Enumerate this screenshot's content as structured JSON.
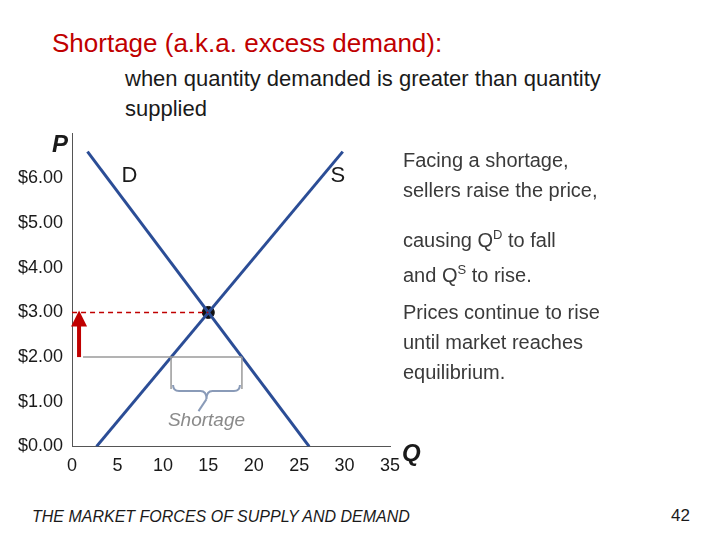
{
  "chart_data": {
    "type": "line",
    "title": "Shortage (a.k.a. excess demand):",
    "subtitle": "when quantity demanded is greater than quantity supplied",
    "xlabel": "Q",
    "ylabel": "P",
    "series": [
      {
        "name": "D",
        "color": "#2b4d96",
        "x": [
          1.7,
          26.1
        ],
        "values": [
          6.6,
          0
        ]
      },
      {
        "name": "S",
        "color": "#2b4d96",
        "x": [
          2.7,
          29.8
        ],
        "values": [
          0,
          6.6
        ]
      }
    ],
    "equilibrium": {
      "x": 15,
      "y": 3
    },
    "shortage": {
      "label": "Shortage",
      "price": 2,
      "quantity_supplied": 10.9,
      "quantity_demanded": 18.7
    },
    "xlim": [
      0,
      35
    ],
    "xticks": [
      0,
      5,
      10,
      15,
      20,
      25,
      30,
      35
    ],
    "ylim": [
      0,
      7
    ],
    "yticks": [
      {
        "value": 0,
        "label": "$0.00"
      },
      {
        "value": 1,
        "label": "$1.00"
      },
      {
        "value": 2,
        "label": "$2.00"
      },
      {
        "value": 3,
        "label": "$3.00"
      },
      {
        "value": 4,
        "label": "$4.00"
      },
      {
        "value": 5,
        "label": "$5.00"
      },
      {
        "value": 6,
        "label": "$6.00"
      }
    ],
    "grid": false,
    "legend": false,
    "annotations": [
      [
        [
          {
            "text": "Facing a shortage,"
          }
        ],
        [
          {
            "text": "sellers raise the price,"
          }
        ]
      ],
      [
        [
          {
            "text": "causing Q"
          },
          {
            "text": "D",
            "sup": true
          },
          {
            "text": " to fall"
          }
        ],
        [
          {
            "text": "and Q"
          },
          {
            "text": "S",
            "sup": true
          },
          {
            "text": " to rise."
          }
        ]
      ],
      [
        [
          {
            "text": "Prices continue to rise"
          }
        ],
        [
          {
            "text": "until market reaches"
          }
        ],
        [
          {
            "text": "equilibrium."
          }
        ]
      ]
    ],
    "footer": "THE MARKET FORCES OF SUPPLY AND DEMAND",
    "page": 42
  }
}
